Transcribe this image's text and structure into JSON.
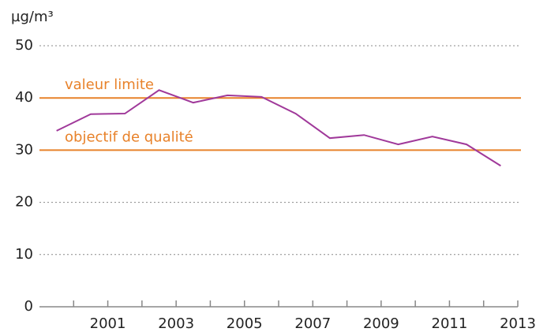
{
  "chart_data": {
    "type": "line",
    "y_label": "µg/m³",
    "x": [
      1999.5,
      2000.5,
      2001.5,
      2002.5,
      2003.5,
      2004.5,
      2005.5,
      2006.5,
      2007.5,
      2008.5,
      2009.5,
      2010.5,
      2011.5,
      2012.5
    ],
    "values": [
      33.7,
      36.9,
      37.0,
      41.5,
      39.1,
      40.5,
      40.2,
      37.0,
      32.3,
      32.9,
      31.1,
      32.6,
      31.1,
      27.0
    ],
    "color": "#a0399a",
    "xlim": [
      1999,
      2013
    ],
    "xticks": [
      2001,
      2003,
      2005,
      2007,
      2009,
      2011,
      2013
    ],
    "xminor_ticks": [
      2000,
      2002,
      2004,
      2006,
      2008,
      2010,
      2012
    ],
    "ylim": [
      0,
      50
    ],
    "yticks": [
      0,
      10,
      20,
      30,
      40,
      50
    ],
    "grid": true,
    "reference_lines": [
      {
        "value": 40,
        "label": "valeur limite",
        "color": "#e8822a"
      },
      {
        "value": 30,
        "label": "objectif de qualité",
        "color": "#e8822a"
      }
    ]
  }
}
